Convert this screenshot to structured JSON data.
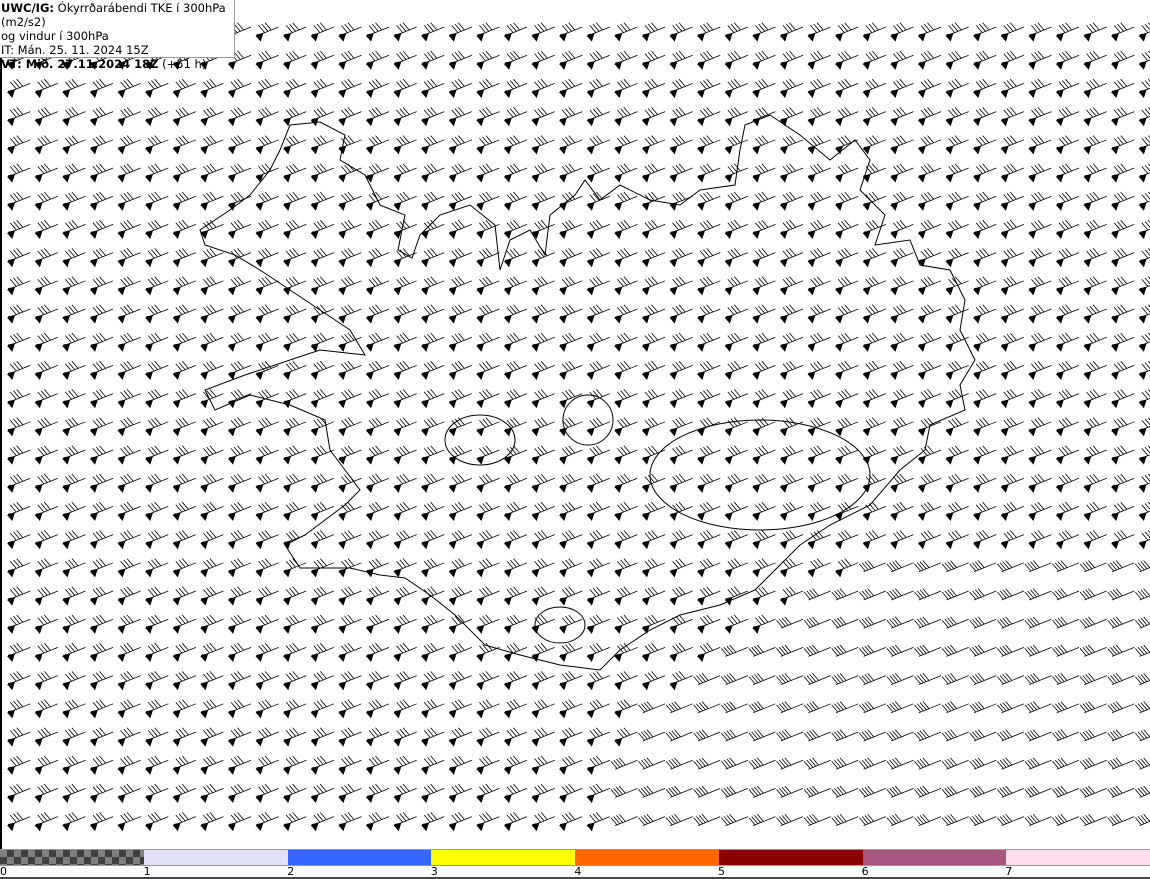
{
  "header": {
    "line1_bold": "UWC/IG:",
    "line1": " Ókyrrðarábendi TKE í 300hPa (m2/s2)",
    "line2": "og vindur í 300hPa",
    "line3": "IT: Mán. 25. 11. 2024 15Z",
    "line4_bold": "VT: Mið. 27.11.2024 18Z",
    "line4": " (+51 h)"
  },
  "map": {
    "region": "Iceland",
    "field": "wind barbs 300hPa",
    "coastline_color": "#000000",
    "barb_color": "#000000"
  },
  "legend": {
    "colors": [
      "checker-gray",
      "#e0e0f8",
      "#3366ff",
      "#ffff00",
      "#ff6600",
      "#880000",
      "#aa5580",
      "#ffdcee"
    ],
    "labels": [
      "0",
      "1",
      "2",
      "3",
      "4",
      "5",
      "6",
      "7"
    ]
  }
}
